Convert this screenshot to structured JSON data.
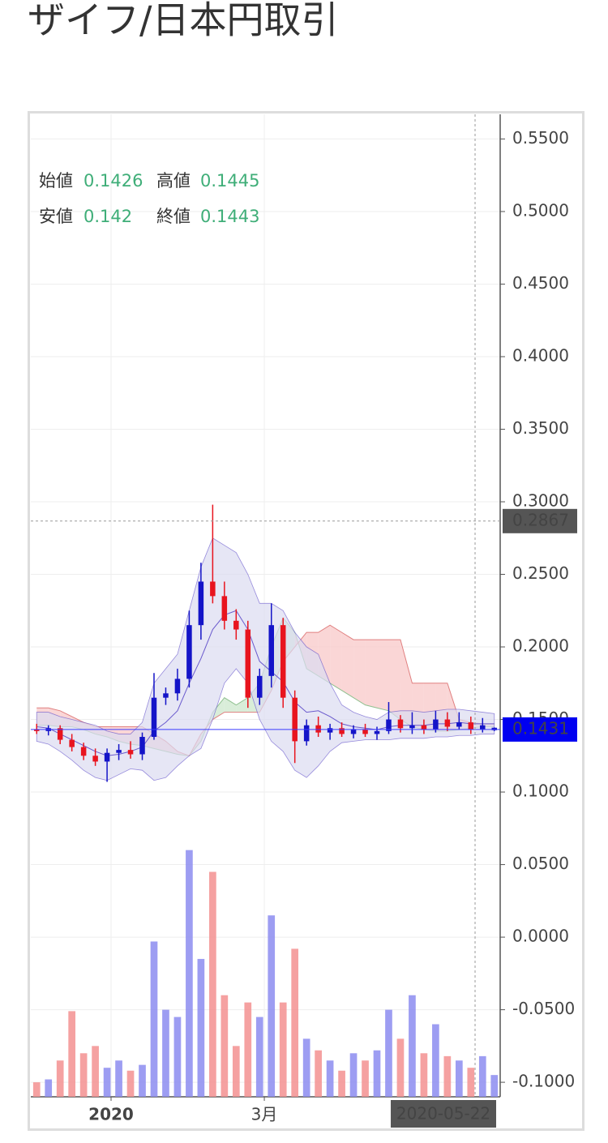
{
  "header": {
    "title": "ザイフ/日本円取引"
  },
  "chart_data": {
    "type": "candlestick",
    "ohlc_legend": [
      {
        "label": "始値",
        "value": 0.1426
      },
      {
        "label": "高値",
        "value": 0.1445
      },
      {
        "label": "安値",
        "value": 0.142
      },
      {
        "label": "終値",
        "value": 0.1443
      }
    ],
    "open": [
      0.143,
      0.142,
      0.144,
      0.136,
      0.131,
      0.125,
      0.121,
      0.127,
      0.129,
      0.126,
      0.138,
      0.165,
      0.168,
      0.178,
      0.215,
      0.245,
      0.235,
      0.218,
      0.212,
      0.165,
      0.18,
      0.215,
      0.165,
      0.135,
      0.146,
      0.141,
      0.144,
      0.14,
      0.143,
      0.14,
      0.142,
      0.15,
      0.144,
      0.146,
      0.143,
      0.15,
      0.145,
      0.148,
      0.143,
      0.1426
    ],
    "high": [
      0.147,
      0.146,
      0.146,
      0.14,
      0.134,
      0.13,
      0.13,
      0.133,
      0.135,
      0.141,
      0.182,
      0.172,
      0.185,
      0.225,
      0.258,
      0.298,
      0.245,
      0.226,
      0.218,
      0.185,
      0.23,
      0.22,
      0.17,
      0.15,
      0.152,
      0.147,
      0.148,
      0.146,
      0.147,
      0.145,
      0.162,
      0.153,
      0.155,
      0.15,
      0.156,
      0.155,
      0.155,
      0.152,
      0.151,
      0.1445
    ],
    "low": [
      0.14,
      0.139,
      0.133,
      0.128,
      0.122,
      0.118,
      0.107,
      0.122,
      0.123,
      0.122,
      0.136,
      0.16,
      0.163,
      0.172,
      0.205,
      0.23,
      0.212,
      0.205,
      0.158,
      0.16,
      0.172,
      0.158,
      0.12,
      0.132,
      0.138,
      0.136,
      0.138,
      0.137,
      0.138,
      0.136,
      0.14,
      0.141,
      0.14,
      0.14,
      0.141,
      0.142,
      0.143,
      0.14,
      0.141,
      0.142
    ],
    "close": [
      0.142,
      0.144,
      0.136,
      0.131,
      0.125,
      0.121,
      0.127,
      0.129,
      0.126,
      0.138,
      0.165,
      0.168,
      0.178,
      0.215,
      0.245,
      0.235,
      0.218,
      0.212,
      0.165,
      0.18,
      0.215,
      0.165,
      0.135,
      0.146,
      0.141,
      0.144,
      0.14,
      0.143,
      0.14,
      0.142,
      0.15,
      0.144,
      0.146,
      0.143,
      0.15,
      0.145,
      0.148,
      0.143,
      0.146,
      0.1443
    ],
    "volume": [
      -0.1,
      -0.098,
      -0.085,
      -0.051,
      -0.08,
      -0.075,
      -0.09,
      -0.085,
      -0.092,
      -0.088,
      -0.003,
      -0.05,
      -0.055,
      0.06,
      -0.015,
      0.045,
      -0.04,
      -0.075,
      -0.045,
      -0.055,
      0.015,
      -0.045,
      -0.008,
      -0.07,
      -0.078,
      -0.085,
      -0.092,
      -0.08,
      -0.085,
      -0.078,
      -0.05,
      -0.07,
      -0.04,
      -0.08,
      -0.06,
      -0.082,
      -0.085,
      -0.09,
      -0.082,
      -0.095
    ],
    "bands": {
      "upper": [
        0.155,
        0.155,
        0.152,
        0.15,
        0.148,
        0.146,
        0.142,
        0.14,
        0.14,
        0.148,
        0.175,
        0.185,
        0.195,
        0.225,
        0.255,
        0.275,
        0.27,
        0.265,
        0.25,
        0.23,
        0.23,
        0.225,
        0.21,
        0.2,
        0.195,
        0.175,
        0.16,
        0.155,
        0.152,
        0.15,
        0.155,
        0.156,
        0.156,
        0.155,
        0.156,
        0.157,
        0.157,
        0.156,
        0.155,
        0.154
      ],
      "middle": [
        0.145,
        0.144,
        0.14,
        0.136,
        0.132,
        0.128,
        0.125,
        0.126,
        0.128,
        0.131,
        0.142,
        0.148,
        0.156,
        0.175,
        0.192,
        0.212,
        0.222,
        0.225,
        0.212,
        0.19,
        0.183,
        0.176,
        0.162,
        0.155,
        0.156,
        0.152,
        0.147,
        0.145,
        0.144,
        0.143,
        0.145,
        0.146,
        0.146,
        0.146,
        0.147,
        0.147,
        0.148,
        0.147,
        0.147,
        0.147
      ],
      "lower": [
        0.135,
        0.133,
        0.128,
        0.122,
        0.115,
        0.11,
        0.108,
        0.112,
        0.116,
        0.115,
        0.108,
        0.11,
        0.118,
        0.125,
        0.13,
        0.15,
        0.175,
        0.185,
        0.175,
        0.15,
        0.135,
        0.128,
        0.115,
        0.11,
        0.118,
        0.128,
        0.134,
        0.135,
        0.136,
        0.136,
        0.136,
        0.137,
        0.137,
        0.137,
        0.138,
        0.138,
        0.139,
        0.139,
        0.14,
        0.14
      ],
      "color": "#6a5acd",
      "fill": "#dcdcf2"
    },
    "cloud": {
      "span_a": [
        0.146,
        0.146,
        0.145,
        0.145,
        0.143,
        0.14,
        0.138,
        0.135,
        0.133,
        0.132,
        0.13,
        0.128,
        0.126,
        0.125,
        0.135,
        0.155,
        0.165,
        0.16,
        0.165,
        0.175,
        0.2,
        0.22,
        0.21,
        0.185,
        0.18,
        0.175,
        0.17,
        0.165,
        0.16,
        0.158,
        0.156,
        0.15,
        0.145,
        0.143,
        0.142,
        0.142,
        0.143,
        0.144,
        0.145,
        0.145
      ],
      "span_b": [
        0.158,
        0.158,
        0.156,
        0.152,
        0.148,
        0.145,
        0.145,
        0.145,
        0.145,
        0.145,
        0.14,
        0.135,
        0.128,
        0.125,
        0.14,
        0.15,
        0.155,
        0.155,
        0.155,
        0.155,
        0.17,
        0.19,
        0.2,
        0.21,
        0.21,
        0.215,
        0.21,
        0.205,
        0.205,
        0.205,
        0.205,
        0.205,
        0.175,
        0.175,
        0.175,
        0.175,
        0.15,
        0.148,
        0.147,
        0.147
      ],
      "up_color": "#cfe8cf",
      "down_color": "#f9cccc",
      "up_line": "#8fc08f",
      "down_line": "#e08080"
    },
    "up_color": "#1414c8",
    "down_color": "#e8141e",
    "volume_up_color": "#8c8cf0",
    "volume_down_color": "#f39090",
    "xlim": [
      0,
      40
    ],
    "xticks": [
      {
        "value": 6.84,
        "label": "2020"
      },
      {
        "value": 19.9,
        "label": "3月"
      }
    ],
    "ylim": [
      -0.11,
      0.567
    ],
    "yticks": [
      {
        "value": 0.55,
        "label": "0.5500"
      },
      {
        "value": 0.5,
        "label": "0.5000"
      },
      {
        "value": 0.45,
        "label": "0.4500"
      },
      {
        "value": 0.4,
        "label": "0.4000"
      },
      {
        "value": 0.35,
        "label": "0.3500"
      },
      {
        "value": 0.3,
        "label": "0.3000"
      },
      {
        "value": 0.25,
        "label": "0.2500"
      },
      {
        "value": 0.2,
        "label": "0.2000"
      },
      {
        "value": 0.15,
        "label": "0.1500"
      },
      {
        "value": 0.1,
        "label": "0.1000"
      },
      {
        "value": 0.05,
        "label": "0.0500"
      },
      {
        "value": 0,
        "label": "0.0000"
      },
      {
        "value": -0.05,
        "label": "-0.0500"
      },
      {
        "value": -0.1,
        "label": "-0.1000"
      }
    ],
    "crosshair": {
      "x": {
        "value": 37.86,
        "label": "2020-05-22"
      },
      "y": 0.2867
    },
    "last_price": 0.1431,
    "grid": true
  }
}
